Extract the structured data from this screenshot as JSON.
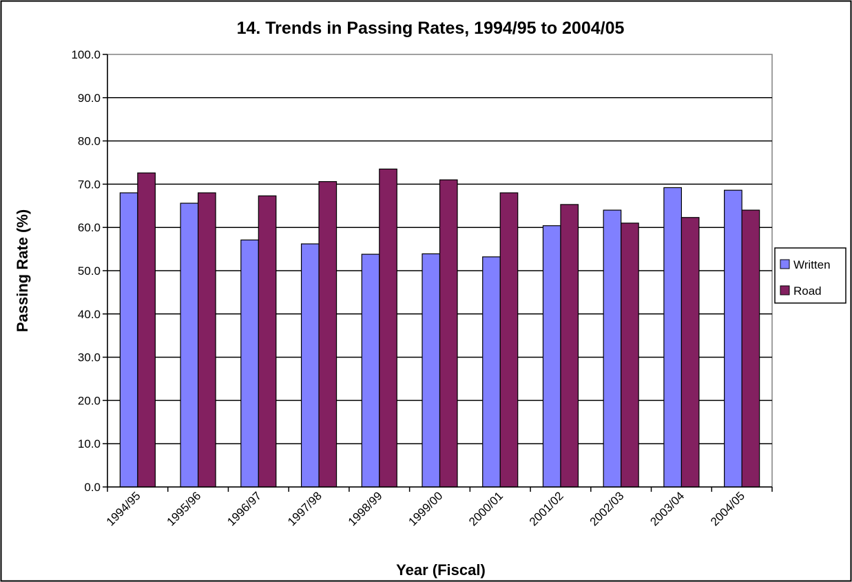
{
  "chart_data": {
    "type": "bar",
    "title": "14. Trends in Passing Rates, 1994/95 to 2004/05",
    "xlabel": "Year (Fiscal)",
    "ylabel": "Passing Rate (%)",
    "ylim": [
      0,
      100
    ],
    "ytick_step": 10,
    "ytick_labels": [
      "0.0",
      "10.0",
      "20.0",
      "30.0",
      "40.0",
      "50.0",
      "60.0",
      "70.0",
      "80.0",
      "90.0",
      "100.0"
    ],
    "grid": true,
    "legend_position": "right",
    "categories": [
      "1994/95",
      "1995/96",
      "1996/97",
      "1997/98",
      "1998/99",
      "1999/00",
      "2000/01",
      "2001/02",
      "2002/03",
      "2003/04",
      "2004/05"
    ],
    "series": [
      {
        "name": "Written",
        "color": "#8080FF",
        "values": [
          68.0,
          65.6,
          57.1,
          56.2,
          53.8,
          53.9,
          53.2,
          60.4,
          64.0,
          69.2,
          68.6
        ]
      },
      {
        "name": "Road",
        "color": "#832060",
        "values": [
          72.6,
          68.0,
          67.3,
          70.6,
          73.5,
          71.0,
          68.0,
          65.3,
          61.0,
          62.3,
          64.0
        ]
      }
    ]
  }
}
